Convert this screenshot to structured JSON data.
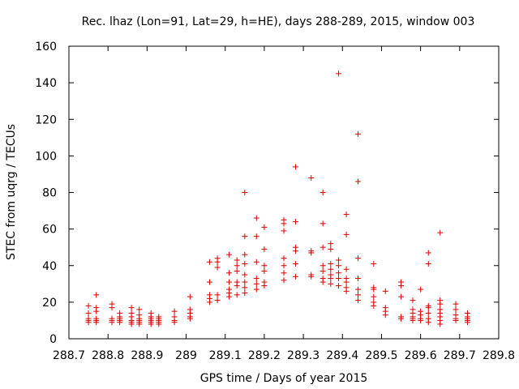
{
  "chart_data": {
    "type": "scatter",
    "title": "Rec. lhaz (Lon=91, Lat=29, h=HE), days 288-289, 2015, window 003",
    "xlabel": "GPS time / Days of year 2015",
    "ylabel": "STEC from uqrg / TECUs",
    "xlim": [
      288.7,
      289.8
    ],
    "ylim": [
      0,
      160
    ],
    "xticks": [
      288.7,
      288.8,
      288.9,
      289.0,
      289.1,
      289.2,
      289.3,
      289.4,
      289.5,
      289.6,
      289.7,
      289.8
    ],
    "xtick_labels": [
      "288.7",
      "288.8",
      "288.9",
      "289",
      "289.1",
      "289.2",
      "289.3",
      "289.4",
      "289.5",
      "289.6",
      "289.7",
      "289.8"
    ],
    "yticks": [
      0,
      20,
      40,
      60,
      80,
      100,
      120,
      140,
      160
    ],
    "ytick_labels": [
      "0",
      "20",
      "40",
      "60",
      "80",
      "100",
      "120",
      "140",
      "160"
    ],
    "grid": false,
    "legend": "none",
    "marker": "plus",
    "color": "#dd0000",
    "series": [
      {
        "points": [
          [
            288.75,
            18
          ],
          [
            288.75,
            14
          ],
          [
            288.75,
            11
          ],
          [
            288.75,
            10
          ],
          [
            288.75,
            9
          ],
          [
            288.77,
            24
          ],
          [
            288.77,
            17
          ],
          [
            288.77,
            15
          ],
          [
            288.77,
            11
          ],
          [
            288.77,
            10
          ],
          [
            288.77,
            9
          ],
          [
            288.81,
            19
          ],
          [
            288.81,
            17
          ],
          [
            288.81,
            11
          ],
          [
            288.81,
            10
          ],
          [
            288.81,
            9
          ],
          [
            288.83,
            14
          ],
          [
            288.83,
            12
          ],
          [
            288.83,
            11
          ],
          [
            288.83,
            10
          ],
          [
            288.83,
            9
          ],
          [
            288.86,
            17
          ],
          [
            288.86,
            14
          ],
          [
            288.86,
            12
          ],
          [
            288.86,
            10
          ],
          [
            288.86,
            9
          ],
          [
            288.86,
            8
          ],
          [
            288.88,
            16
          ],
          [
            288.88,
            13
          ],
          [
            288.88,
            11
          ],
          [
            288.88,
            10
          ],
          [
            288.88,
            9
          ],
          [
            288.88,
            8
          ],
          [
            288.91,
            14
          ],
          [
            288.91,
            12
          ],
          [
            288.91,
            11
          ],
          [
            288.91,
            10
          ],
          [
            288.91,
            9
          ],
          [
            288.91,
            8
          ],
          [
            288.93,
            12
          ],
          [
            288.93,
            11
          ],
          [
            288.93,
            10
          ],
          [
            288.93,
            9
          ],
          [
            288.93,
            8
          ],
          [
            288.97,
            15
          ],
          [
            288.97,
            12
          ],
          [
            288.97,
            10
          ],
          [
            288.97,
            9
          ],
          [
            289.01,
            23
          ],
          [
            289.01,
            16
          ],
          [
            289.01,
            14
          ],
          [
            289.01,
            12
          ],
          [
            289.01,
            11
          ],
          [
            289.06,
            42
          ],
          [
            289.06,
            31
          ],
          [
            289.06,
            24
          ],
          [
            289.06,
            22
          ],
          [
            289.06,
            20
          ],
          [
            289.08,
            44
          ],
          [
            289.08,
            42
          ],
          [
            289.08,
            39
          ],
          [
            289.08,
            24
          ],
          [
            289.08,
            21
          ],
          [
            289.11,
            46
          ],
          [
            289.11,
            36
          ],
          [
            289.11,
            31
          ],
          [
            289.11,
            27
          ],
          [
            289.11,
            25
          ],
          [
            289.11,
            23
          ],
          [
            289.13,
            43
          ],
          [
            289.13,
            40
          ],
          [
            289.13,
            37
          ],
          [
            289.13,
            31
          ],
          [
            289.13,
            29
          ],
          [
            289.13,
            24
          ],
          [
            289.15,
            80
          ],
          [
            289.15,
            56
          ],
          [
            289.15,
            46
          ],
          [
            289.15,
            41
          ],
          [
            289.15,
            35
          ],
          [
            289.15,
            31
          ],
          [
            289.15,
            28
          ],
          [
            289.15,
            25
          ],
          [
            289.18,
            66
          ],
          [
            289.18,
            56
          ],
          [
            289.18,
            42
          ],
          [
            289.18,
            33
          ],
          [
            289.18,
            30
          ],
          [
            289.18,
            27
          ],
          [
            289.2,
            61
          ],
          [
            289.2,
            49
          ],
          [
            289.2,
            40
          ],
          [
            289.2,
            37
          ],
          [
            289.2,
            31
          ],
          [
            289.2,
            29
          ],
          [
            289.25,
            65
          ],
          [
            289.25,
            63
          ],
          [
            289.25,
            59
          ],
          [
            289.25,
            44
          ],
          [
            289.25,
            40
          ],
          [
            289.25,
            36
          ],
          [
            289.25,
            32
          ],
          [
            289.28,
            94
          ],
          [
            289.28,
            64
          ],
          [
            289.28,
            50
          ],
          [
            289.28,
            48
          ],
          [
            289.28,
            41
          ],
          [
            289.28,
            34
          ],
          [
            289.32,
            88
          ],
          [
            289.32,
            48
          ],
          [
            289.32,
            47
          ],
          [
            289.32,
            35
          ],
          [
            289.32,
            34
          ],
          [
            289.35,
            80
          ],
          [
            289.35,
            63
          ],
          [
            289.35,
            50
          ],
          [
            289.35,
            40
          ],
          [
            289.35,
            37
          ],
          [
            289.35,
            33
          ],
          [
            289.35,
            31
          ],
          [
            289.37,
            52
          ],
          [
            289.37,
            49
          ],
          [
            289.37,
            41
          ],
          [
            289.37,
            38
          ],
          [
            289.37,
            35
          ],
          [
            289.37,
            33
          ],
          [
            289.37,
            30
          ],
          [
            289.39,
            145
          ],
          [
            289.39,
            43
          ],
          [
            289.39,
            40
          ],
          [
            289.39,
            36
          ],
          [
            289.39,
            33
          ],
          [
            289.39,
            29
          ],
          [
            289.41,
            68
          ],
          [
            289.41,
            57
          ],
          [
            289.41,
            38
          ],
          [
            289.41,
            33
          ],
          [
            289.41,
            31
          ],
          [
            289.41,
            28
          ],
          [
            289.41,
            26
          ],
          [
            289.44,
            112
          ],
          [
            289.44,
            86
          ],
          [
            289.44,
            44
          ],
          [
            289.44,
            33
          ],
          [
            289.44,
            27
          ],
          [
            289.44,
            24
          ],
          [
            289.44,
            21
          ],
          [
            289.48,
            41
          ],
          [
            289.48,
            28
          ],
          [
            289.48,
            27
          ],
          [
            289.48,
            23
          ],
          [
            289.48,
            20
          ],
          [
            289.48,
            18
          ],
          [
            289.51,
            26
          ],
          [
            289.51,
            17
          ],
          [
            289.51,
            15
          ],
          [
            289.51,
            13
          ],
          [
            289.55,
            31
          ],
          [
            289.55,
            29
          ],
          [
            289.55,
            23
          ],
          [
            289.55,
            12
          ],
          [
            289.55,
            11
          ],
          [
            289.58,
            21
          ],
          [
            289.58,
            16
          ],
          [
            289.58,
            14
          ],
          [
            289.58,
            12
          ],
          [
            289.58,
            11
          ],
          [
            289.58,
            10
          ],
          [
            289.6,
            27
          ],
          [
            289.6,
            15
          ],
          [
            289.6,
            13
          ],
          [
            289.6,
            11
          ],
          [
            289.6,
            10
          ],
          [
            289.62,
            47
          ],
          [
            289.62,
            41
          ],
          [
            289.62,
            18
          ],
          [
            289.62,
            17
          ],
          [
            289.62,
            14
          ],
          [
            289.62,
            11
          ],
          [
            289.62,
            9
          ],
          [
            289.65,
            58
          ],
          [
            289.65,
            21
          ],
          [
            289.65,
            19
          ],
          [
            289.65,
            16
          ],
          [
            289.65,
            14
          ],
          [
            289.65,
            12
          ],
          [
            289.65,
            10
          ],
          [
            289.65,
            8
          ],
          [
            289.69,
            19
          ],
          [
            289.69,
            16
          ],
          [
            289.69,
            13
          ],
          [
            289.69,
            11
          ],
          [
            289.69,
            10
          ],
          [
            289.72,
            14
          ],
          [
            289.72,
            12
          ],
          [
            289.72,
            11
          ],
          [
            289.72,
            10
          ],
          [
            289.72,
            9
          ]
        ]
      }
    ]
  }
}
